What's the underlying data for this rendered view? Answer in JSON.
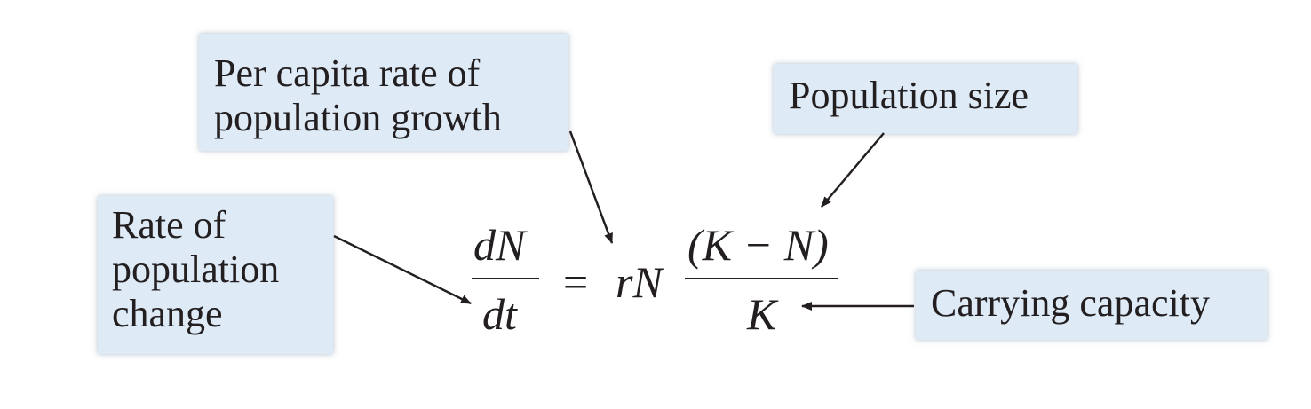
{
  "labels": {
    "per_capita": [
      "Per capita rate of",
      "population growth"
    ],
    "population_size": "Population size",
    "rate_of_change": [
      "Rate of",
      "population",
      "change"
    ],
    "carrying_capacity": "Carrying capacity"
  },
  "equation": {
    "lhs_numerator": "dN",
    "lhs_denominator": "dt",
    "equals": "=",
    "rN": "rN",
    "rhs_numerator": "(K − N)",
    "rhs_denominator": "K"
  },
  "colors": {
    "box_fill": "#deebf7",
    "ink": "#231f20"
  }
}
